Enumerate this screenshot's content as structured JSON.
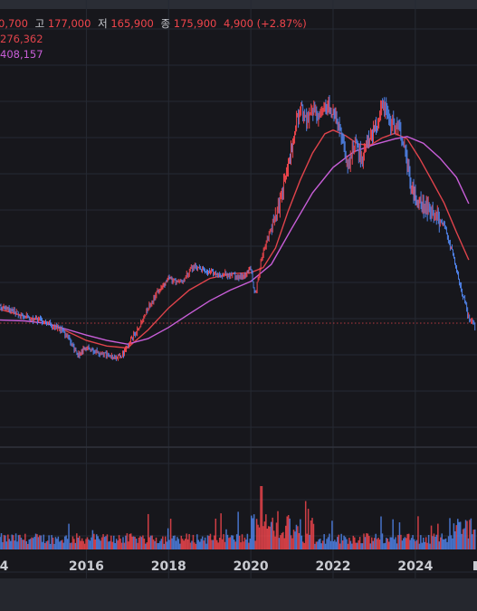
{
  "colors": {
    "background": "#17171c",
    "grid": "#262a33",
    "up": "#f0454c",
    "down": "#4f82e8",
    "ma_short": "#e0434b",
    "ma_long": "#c85ed8",
    "legend_label": "#c9cbd1",
    "price_line": "#e0434b"
  },
  "legend": {
    "ohlc_prefix": "0,700",
    "high_label": "고",
    "high_value": "177,000",
    "low_label": "저",
    "low_value": "165,900",
    "close_label": "종",
    "close_value": "175,900",
    "change": "4,900 (+2.87%)",
    "ma_short_value": "276,362",
    "ma_long_value": "408,157"
  },
  "chart_data": {
    "type": "line",
    "title": "",
    "xlabel": "",
    "ylabel": "",
    "x_ticks": [
      "4",
      "2016",
      "2018",
      "2020",
      "2022",
      "2024"
    ],
    "x_range": [
      2013.9,
      2025.5
    ],
    "price_axis_visible": false,
    "last_price": 175900,
    "series": [
      {
        "kind": "price",
        "points": [
          [
            2013.9,
            199000
          ],
          [
            2014.2,
            194000
          ],
          [
            2014.5,
            187000
          ],
          [
            2014.8,
            182000
          ],
          [
            2015.1,
            178000
          ],
          [
            2015.4,
            170000
          ],
          [
            2015.6,
            158000
          ],
          [
            2015.8,
            143000
          ],
          [
            2016.0,
            150000
          ],
          [
            2016.3,
            145000
          ],
          [
            2016.6,
            141000
          ],
          [
            2016.9,
            143000
          ],
          [
            2017.1,
            160000
          ],
          [
            2017.3,
            175000
          ],
          [
            2017.5,
            198000
          ],
          [
            2017.8,
            228000
          ],
          [
            2018.0,
            242000
          ],
          [
            2018.3,
            237000
          ],
          [
            2018.6,
            264000
          ],
          [
            2018.9,
            255000
          ],
          [
            2019.2,
            250000
          ],
          [
            2019.5,
            250000
          ],
          [
            2019.8,
            244000
          ],
          [
            2020.0,
            262000
          ],
          [
            2020.1,
            215000
          ],
          [
            2020.3,
            295000
          ],
          [
            2020.5,
            345000
          ],
          [
            2020.7,
            413000
          ],
          [
            2020.9,
            520000
          ],
          [
            2021.0,
            610000
          ],
          [
            2021.2,
            810000
          ],
          [
            2021.35,
            710000
          ],
          [
            2021.5,
            780000
          ],
          [
            2021.7,
            745000
          ],
          [
            2021.8,
            830000
          ],
          [
            2022.0,
            770000
          ],
          [
            2022.2,
            650000
          ],
          [
            2022.35,
            520000
          ],
          [
            2022.5,
            635000
          ],
          [
            2022.7,
            560000
          ],
          [
            2022.9,
            650000
          ],
          [
            2023.1,
            705000
          ],
          [
            2023.2,
            810000
          ],
          [
            2023.4,
            720000
          ],
          [
            2023.6,
            710000
          ],
          [
            2023.75,
            590000
          ],
          [
            2023.9,
            460000
          ],
          [
            2024.1,
            410000
          ],
          [
            2024.3,
            395000
          ],
          [
            2024.5,
            380000
          ],
          [
            2024.7,
            350000
          ],
          [
            2024.9,
            290000
          ],
          [
            2025.1,
            230000
          ],
          [
            2025.3,
            185000
          ],
          [
            2025.45,
            175900
          ]
        ]
      },
      {
        "name": "",
        "kind": "ma_short",
        "points": [
          [
            2013.9,
            196000
          ],
          [
            2014.5,
            187000
          ],
          [
            2015.0,
            180000
          ],
          [
            2015.5,
            169000
          ],
          [
            2016.0,
            158000
          ],
          [
            2016.5,
            152000
          ],
          [
            2017.0,
            150000
          ],
          [
            2017.5,
            170000
          ],
          [
            2018.0,
            198000
          ],
          [
            2018.5,
            224000
          ],
          [
            2019.0,
            243000
          ],
          [
            2019.5,
            251000
          ],
          [
            2020.0,
            253000
          ],
          [
            2020.3,
            262000
          ],
          [
            2020.6,
            300000
          ],
          [
            2020.9,
            385000
          ],
          [
            2021.2,
            480000
          ],
          [
            2021.5,
            580000
          ],
          [
            2021.8,
            663000
          ],
          [
            2022.0,
            680000
          ],
          [
            2022.3,
            655000
          ],
          [
            2022.6,
            618000
          ],
          [
            2022.9,
            612000
          ],
          [
            2023.2,
            645000
          ],
          [
            2023.5,
            665000
          ],
          [
            2023.8,
            640000
          ],
          [
            2024.1,
            560000
          ],
          [
            2024.4,
            480000
          ],
          [
            2024.7,
            410000
          ],
          [
            2025.0,
            335000
          ],
          [
            2025.3,
            276362
          ]
        ]
      },
      {
        "name": "",
        "kind": "ma_long",
        "points": [
          [
            2013.9,
            182000
          ],
          [
            2014.5,
            181000
          ],
          [
            2015.0,
            178000
          ],
          [
            2015.5,
            171000
          ],
          [
            2016.0,
            164000
          ],
          [
            2016.5,
            158000
          ],
          [
            2017.0,
            154000
          ],
          [
            2017.5,
            160000
          ],
          [
            2018.0,
            173000
          ],
          [
            2018.5,
            190000
          ],
          [
            2019.0,
            208000
          ],
          [
            2019.5,
            224000
          ],
          [
            2020.0,
            238000
          ],
          [
            2020.5,
            268000
          ],
          [
            2021.0,
            345000
          ],
          [
            2021.5,
            440000
          ],
          [
            2022.0,
            525000
          ],
          [
            2022.5,
            585000
          ],
          [
            2023.0,
            615000
          ],
          [
            2023.5,
            640000
          ],
          [
            2023.8,
            650000
          ],
          [
            2024.2,
            620000
          ],
          [
            2024.6,
            560000
          ],
          [
            2025.0,
            490000
          ],
          [
            2025.3,
            408157
          ]
        ]
      }
    ],
    "volume_bars": 360
  }
}
